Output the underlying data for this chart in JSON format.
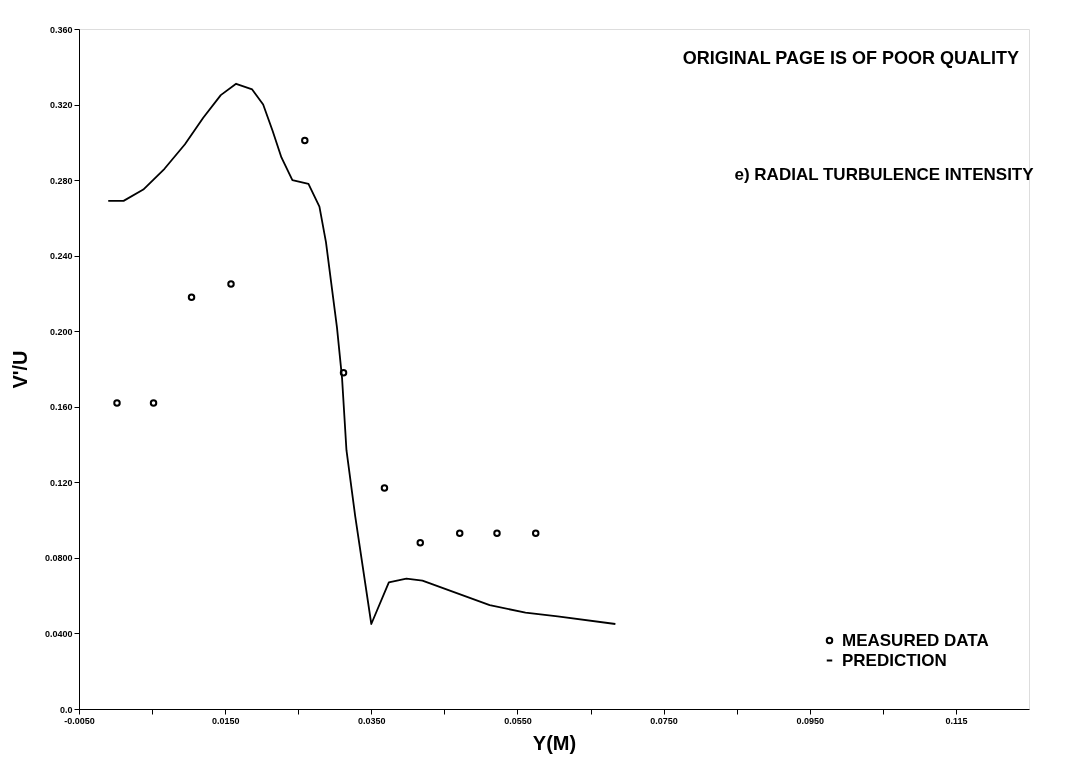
{
  "chart_data": {
    "type": "scatter",
    "title": "e) RADIAL TURBULENCE INTENSITY",
    "xlabel": "Y(M)",
    "ylabel": "V'/U",
    "annotations": [
      "ORIGINAL PAGE IS OF POOR QUALITY"
    ],
    "xlim": [
      -0.005,
      0.125
    ],
    "xticks": [
      {
        "value": -0.005,
        "label": "-0.0050"
      },
      {
        "value": 0.005,
        "label": null
      },
      {
        "value": 0.015,
        "label": "0.0150"
      },
      {
        "value": 0.025,
        "label": null
      },
      {
        "value": 0.035,
        "label": "0.0350"
      },
      {
        "value": 0.045,
        "label": null
      },
      {
        "value": 0.055,
        "label": "0.0550"
      },
      {
        "value": 0.065,
        "label": null
      },
      {
        "value": 0.075,
        "label": "0.0750"
      },
      {
        "value": 0.085,
        "label": null
      },
      {
        "value": 0.095,
        "label": "0.0950"
      },
      {
        "value": 0.105,
        "label": null
      },
      {
        "value": 0.115,
        "label": "0.115"
      }
    ],
    "ylim": [
      0,
      0.36
    ],
    "yticks": [
      {
        "value": 0,
        "label": "0.0"
      },
      {
        "value": 0.04,
        "label": "0.0400"
      },
      {
        "value": 0.08,
        "label": "0.0800"
      },
      {
        "value": 0.12,
        "label": "0.120"
      },
      {
        "value": 0.16,
        "label": "0.160"
      },
      {
        "value": 0.2,
        "label": "0.200"
      },
      {
        "value": 0.24,
        "label": "0.240"
      },
      {
        "value": 0.28,
        "label": "0.280"
      },
      {
        "value": 0.32,
        "label": "0.320"
      },
      {
        "value": 0.36,
        "label": "0.360"
      }
    ],
    "grid": false,
    "legend": "bottom right",
    "series": [
      {
        "name": "MEASURED DATA",
        "marker": "circle",
        "color": "#000000",
        "x": [
          0.0002,
          0.0052,
          0.0104,
          0.0158,
          0.0259,
          0.0312,
          0.0368,
          0.0417,
          0.0471,
          0.0522,
          0.0575
        ],
        "values": [
          0.162,
          0.162,
          0.218,
          0.225,
          0.301,
          0.178,
          0.117,
          0.088,
          0.093,
          0.093,
          0.093
        ]
      },
      {
        "name": "PREDICTION",
        "type": "line",
        "line_style": "solid",
        "color": "#000000",
        "x": [
          -0.001,
          0.0011,
          0.0038,
          0.0067,
          0.0095,
          0.012,
          0.0144,
          0.0165,
          0.0187,
          0.0202,
          0.0215,
          0.0227,
          0.0242,
          0.0264,
          0.0279,
          0.0288,
          0.0295,
          0.0303,
          0.031,
          0.0316,
          0.0328,
          0.035,
          0.0374,
          0.0398,
          0.042,
          0.0512,
          0.0561,
          0.0605,
          0.0684
        ],
        "values": [
          0.269,
          0.269,
          0.275,
          0.286,
          0.299,
          0.313,
          0.325,
          0.331,
          0.328,
          0.32,
          0.306,
          0.292,
          0.28,
          0.278,
          0.266,
          0.247,
          0.226,
          0.202,
          0.175,
          0.137,
          0.102,
          0.045,
          0.067,
          0.069,
          0.068,
          0.055,
          0.051,
          0.049,
          0.045
        ]
      }
    ]
  }
}
